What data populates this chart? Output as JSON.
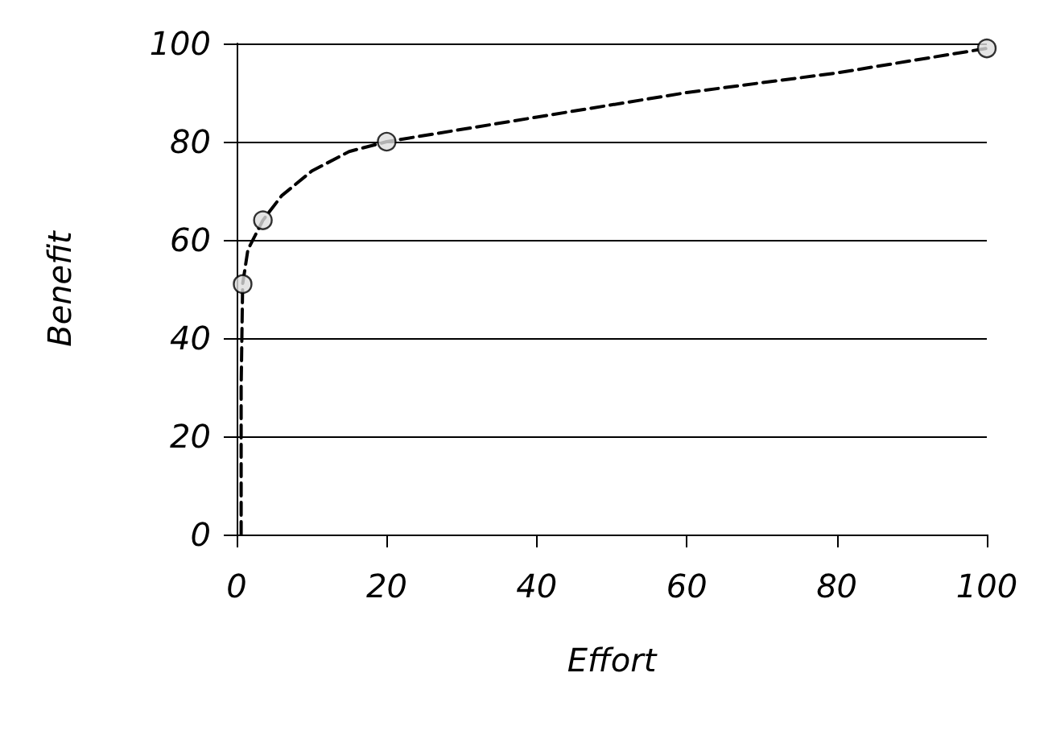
{
  "chart_data": {
    "type": "line",
    "xlabel": "Effort",
    "ylabel": "Benefit",
    "xlim": [
      0,
      100
    ],
    "ylim": [
      0,
      100
    ],
    "xticks": [
      0,
      20,
      40,
      60,
      80,
      100
    ],
    "yticks": [
      0,
      20,
      40,
      60,
      80,
      100
    ],
    "grid": "y",
    "series": [
      {
        "color": "#000000",
        "line_style": "dashed",
        "marker": "none",
        "x": [
          0.6,
          0.6,
          0.8,
          1.5,
          3.5,
          6,
          10,
          15,
          20,
          40,
          60,
          80,
          100
        ],
        "values": [
          0,
          30,
          51,
          58,
          64,
          69,
          74,
          78,
          80,
          85,
          90,
          94,
          99
        ]
      },
      {
        "type": "scatter",
        "color": "#dddddd",
        "marker": "circle",
        "x": [
          0.8,
          3.5,
          20,
          100
        ],
        "values": [
          51,
          64,
          80,
          99
        ]
      }
    ]
  }
}
